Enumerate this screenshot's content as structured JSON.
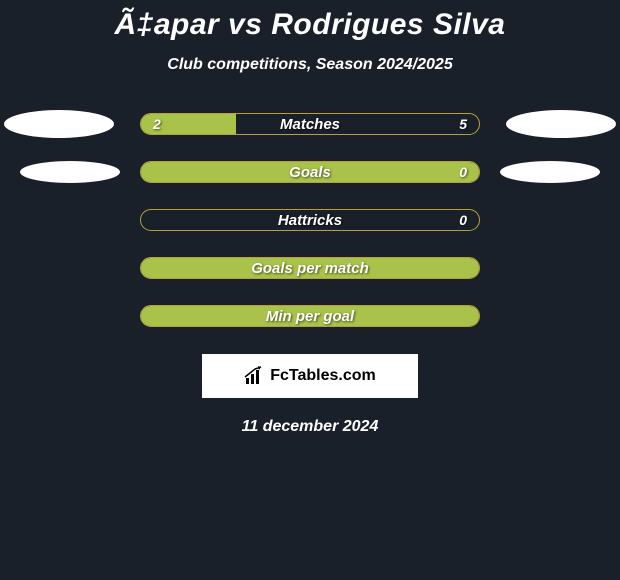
{
  "background_color": "#1a2029",
  "title": "Ã‡apar vs Rodrigues Silva",
  "title_fontsize": 30,
  "subtitle": "Club competitions, Season 2024/2025",
  "subtitle_fontsize": 16,
  "bar_track_width": 340,
  "bar_track_height": 22,
  "bar_border_color": "#b3a23a",
  "bar_fill_color": "#a8c24a",
  "oval_color_white": "#ffffff",
  "oval_large_w": 110,
  "oval_large_h": 28,
  "oval_small_w": 100,
  "oval_small_h": 22,
  "text_color": "#ffffff",
  "rows": [
    {
      "label": "Matches",
      "left_val": "2",
      "right_val": "5",
      "fill_pct": 28,
      "show_ovals": true,
      "oval_size": "large"
    },
    {
      "label": "Goals",
      "left_val": "",
      "right_val": "0",
      "fill_pct": 100,
      "show_ovals": true,
      "oval_size": "small"
    },
    {
      "label": "Hattricks",
      "left_val": "",
      "right_val": "0",
      "fill_pct": 0,
      "show_ovals": false
    },
    {
      "label": "Goals per match",
      "left_val": "",
      "right_val": "",
      "fill_pct": 100,
      "show_ovals": false
    },
    {
      "label": "Min per goal",
      "left_val": "",
      "right_val": "",
      "fill_pct": 100,
      "show_ovals": false
    }
  ],
  "footer_brand": "FcTables.com",
  "footer_box_bg": "#ffffff",
  "footer_date": "11 december 2024"
}
